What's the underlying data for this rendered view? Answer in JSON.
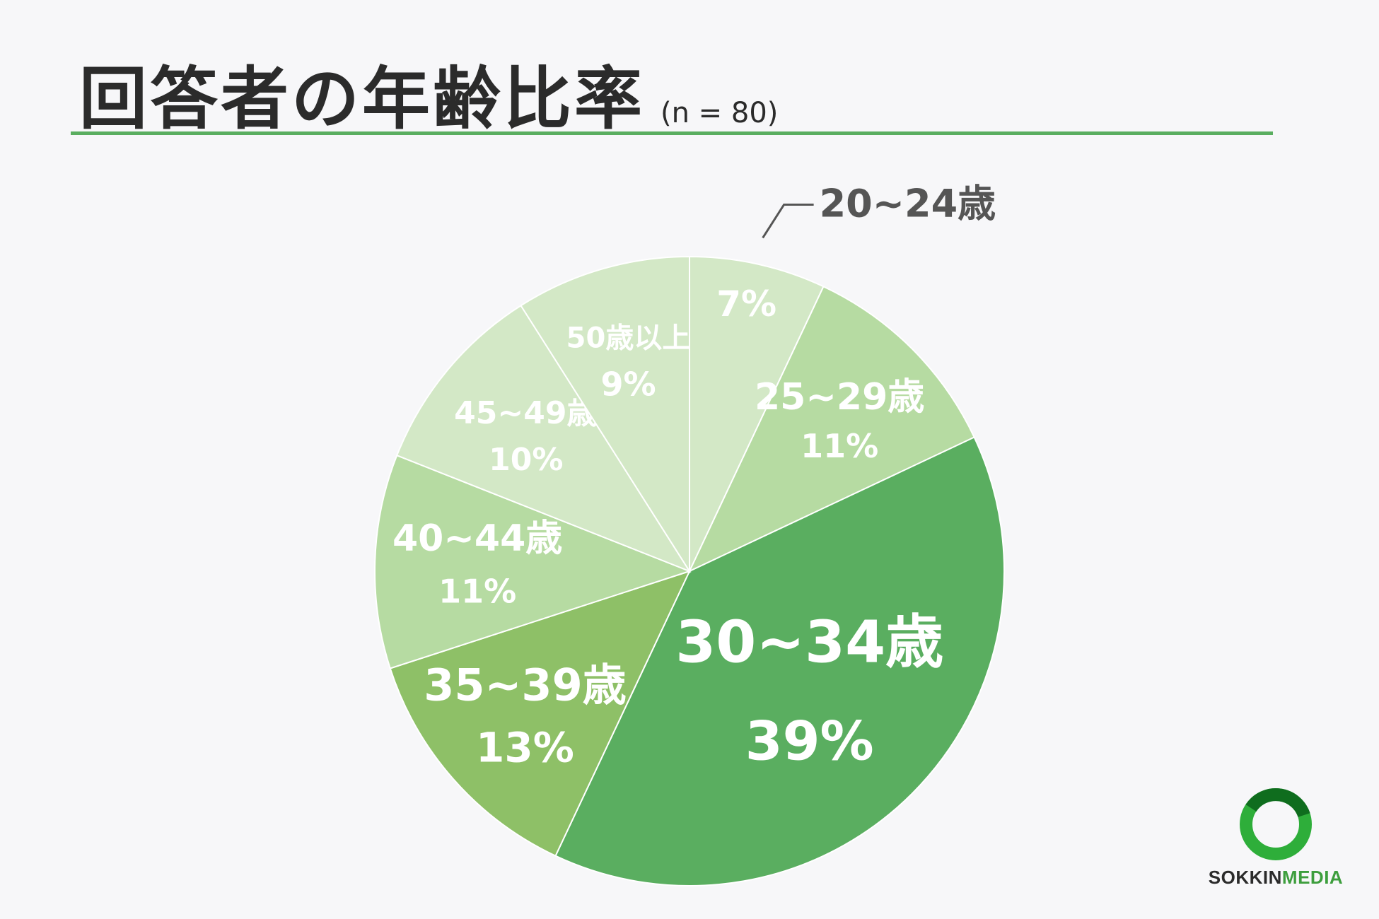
{
  "header": {
    "title": "回答者の年齢比率",
    "subtitle": "(n = 80)"
  },
  "chart_data": {
    "type": "pie",
    "start_angle_deg": 0,
    "direction": "clockwise",
    "slices": [
      {
        "label": "20~24歳",
        "value": 7,
        "value_label": "7%",
        "color": "#d3e8c6",
        "label_color": "#555555",
        "label_outside": true
      },
      {
        "label": "25~29歳",
        "value": 11,
        "value_label": "11%",
        "color": "#b6dba2",
        "label_color": "#ffffff"
      },
      {
        "label": "30~34歳",
        "value": 39,
        "value_label": "39%",
        "color": "#5aae60",
        "label_color": "#ffffff"
      },
      {
        "label": "35~39歳",
        "value": 13,
        "value_label": "13%",
        "color": "#8ec067",
        "label_color": "#ffffff"
      },
      {
        "label": "40~44歳",
        "value": 11,
        "value_label": "11%",
        "color": "#b6dba2",
        "label_color": "#ffffff"
      },
      {
        "label": "45~49歳",
        "value": 10,
        "value_label": "10%",
        "color": "#d3e8c6",
        "label_color": "#ffffff"
      },
      {
        "label": "50歳以上",
        "value": 9,
        "value_label": "9%",
        "color": "#d3e8c6",
        "label_color": "#ffffff"
      }
    ]
  },
  "logo": {
    "text_part1": "SOKKIN",
    "text_part2": "MEDIA",
    "ring_color": "#2eae3a"
  }
}
